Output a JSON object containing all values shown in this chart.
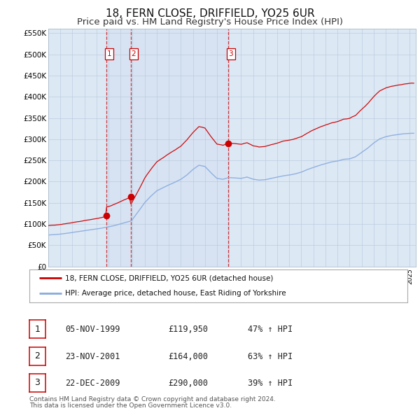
{
  "title": "18, FERN CLOSE, DRIFFIELD, YO25 6UR",
  "subtitle": "Price paid vs. HM Land Registry's House Price Index (HPI)",
  "title_fontsize": 11,
  "subtitle_fontsize": 9.5,
  "ylim": [
    0,
    560000
  ],
  "yticks": [
    0,
    50000,
    100000,
    150000,
    200000,
    250000,
    300000,
    350000,
    400000,
    450000,
    500000,
    550000
  ],
  "ytick_labels": [
    "£0",
    "£50K",
    "£100K",
    "£150K",
    "£200K",
    "£250K",
    "£300K",
    "£350K",
    "£400K",
    "£450K",
    "£500K",
    "£550K"
  ],
  "property_color": "#cc0000",
  "hpi_color": "#88aadd",
  "background_color": "#ffffff",
  "plot_bg_color": "#dde8f5",
  "grid_color": "#bbccdd",
  "sale_prices": [
    119950,
    164000,
    290000
  ],
  "sale_labels": [
    "1",
    "2",
    "3"
  ],
  "annotation_rows": [
    [
      "1",
      "05-NOV-1999",
      "£119,950",
      "47% ↑ HPI"
    ],
    [
      "2",
      "23-NOV-2001",
      "£164,000",
      "63% ↑ HPI"
    ],
    [
      "3",
      "22-DEC-2009",
      "£290,000",
      "39% ↑ HPI"
    ]
  ],
  "legend_entries": [
    "18, FERN CLOSE, DRIFFIELD, YO25 6UR (detached house)",
    "HPI: Average price, detached house, East Riding of Yorkshire"
  ],
  "footer_line1": "Contains HM Land Registry data © Crown copyright and database right 2024.",
  "footer_line2": "This data is licensed under the Open Government Licence v3.0."
}
